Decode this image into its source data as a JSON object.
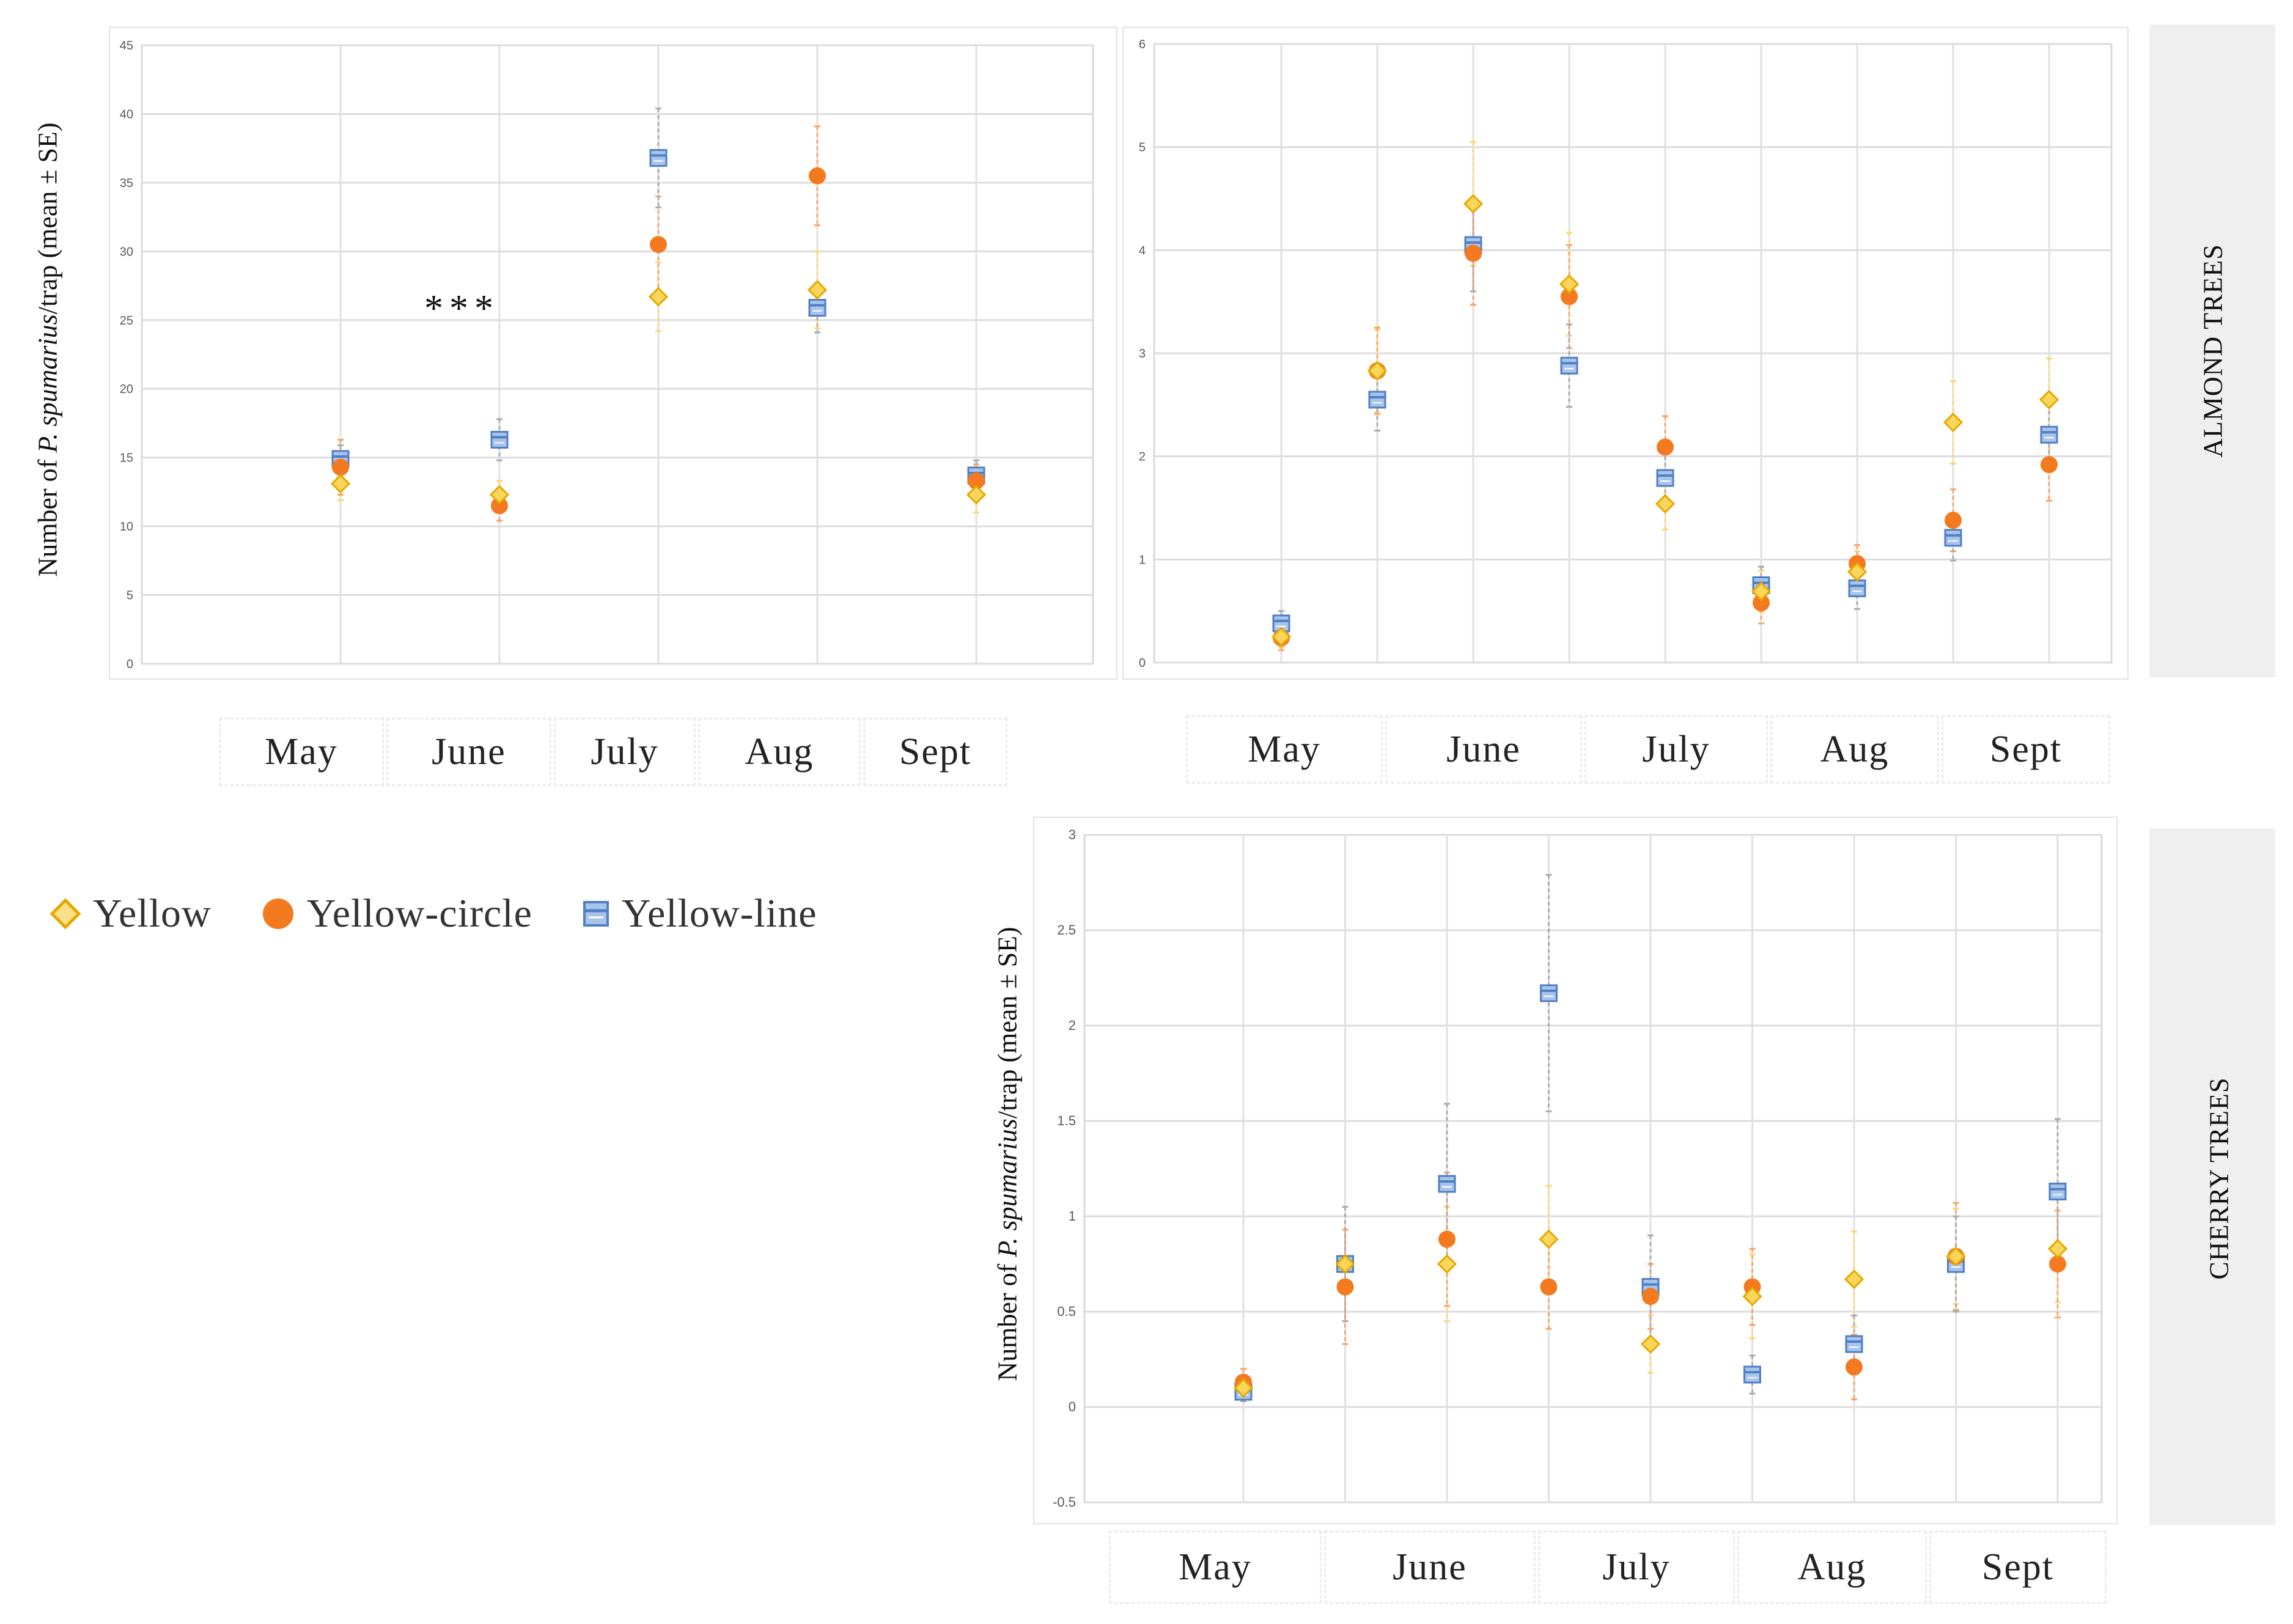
{
  "legend": {
    "items": [
      {
        "label": "Yellow",
        "marker": "diamond",
        "color": "#F7C62F"
      },
      {
        "label": "Yellow-circle",
        "marker": "circle",
        "color": "#F47A20"
      },
      {
        "label": "Yellow-line",
        "marker": "square",
        "color": "#5B8BD0"
      }
    ]
  },
  "side_labels": {
    "almond": "ALMOND TREES",
    "cherry": "CHERRY TREES"
  },
  "y_axis_label": {
    "prefix": "Number of ",
    "species": "P. spumarius",
    "suffix": "/trap (mean ± SE)"
  },
  "annotation": "***",
  "month_rows": {
    "panel1": [
      "May",
      "June",
      "July",
      "Aug",
      "Sept"
    ],
    "panel2": [
      "May",
      "June",
      "July",
      "Aug",
      "Sept"
    ],
    "panel3": [
      "May",
      "June",
      "July",
      "Aug",
      "Sept"
    ]
  },
  "chart_data": [
    {
      "id": "panel1",
      "type": "scatter",
      "title": "",
      "ylabel": "Number of P. spumarius/trap (mean ± SE)",
      "ylim": [
        0,
        45
      ],
      "yticks": [
        "0",
        "5",
        "10",
        "15",
        "20",
        "25",
        "30",
        "35",
        "40",
        "45"
      ],
      "x_count": 5,
      "series": [
        {
          "name": "Yellow",
          "values": [
            13.1,
            12.3,
            26.7,
            27.2,
            12.3
          ],
          "err": [
            1.2,
            1.0,
            2.5,
            2.8,
            1.3
          ]
        },
        {
          "name": "Yellow-circle",
          "values": [
            14.3,
            11.5,
            30.5,
            35.5,
            13.3
          ],
          "err": [
            2.0,
            1.1,
            3.5,
            3.6,
            1.2
          ]
        },
        {
          "name": "Yellow-line",
          "values": [
            14.9,
            16.3,
            36.8,
            25.9,
            13.7
          ],
          "err": [
            1.0,
            1.5,
            3.6,
            1.8,
            1.1
          ]
        }
      ]
    },
    {
      "id": "panel2",
      "type": "scatter",
      "title": "",
      "ylim": [
        0,
        6
      ],
      "yticks": [
        "0",
        "1",
        "2",
        "3",
        "4",
        "5",
        "6"
      ],
      "x_count": 9,
      "series": [
        {
          "name": "Yellow",
          "values": [
            0.25,
            2.83,
            4.45,
            3.67,
            1.54,
            0.69,
            0.88,
            2.33,
            2.55
          ],
          "err": [
            0.1,
            0.4,
            0.6,
            0.5,
            0.25,
            0.2,
            0.2,
            0.4,
            0.4
          ]
        },
        {
          "name": "Yellow-circle",
          "values": [
            0.24,
            2.83,
            3.97,
            3.55,
            2.09,
            0.58,
            0.96,
            1.38,
            1.92
          ],
          "err": [
            0.12,
            0.42,
            0.5,
            0.5,
            0.3,
            0.2,
            0.18,
            0.3,
            0.35
          ]
        },
        {
          "name": "Yellow-line",
          "values": [
            0.38,
            2.55,
            4.05,
            2.88,
            1.79,
            0.75,
            0.72,
            1.21,
            2.21
          ],
          "err": [
            0.12,
            0.3,
            0.45,
            0.4,
            0.28,
            0.18,
            0.2,
            0.22,
            0.3
          ]
        }
      ]
    },
    {
      "id": "panel3",
      "type": "scatter",
      "title": "",
      "ylabel": "Number of P. spumarius/trap (mean ± SE)",
      "ylim": [
        -0.5,
        3
      ],
      "yticks": [
        "-0.5",
        "0",
        "0.5",
        "1",
        "1.5",
        "2",
        "2.5",
        "3"
      ],
      "x_count": 9,
      "series": [
        {
          "name": "Yellow",
          "values": [
            0.1,
            0.75,
            0.75,
            0.88,
            0.33,
            0.58,
            0.67,
            0.79,
            0.83
          ],
          "err": [
            0.05,
            0.3,
            0.3,
            0.28,
            0.15,
            0.22,
            0.25,
            0.25,
            0.28
          ]
        },
        {
          "name": "Yellow-circle",
          "values": [
            0.13,
            0.63,
            0.88,
            0.63,
            0.58,
            0.63,
            0.21,
            0.79,
            0.75
          ],
          "err": [
            0.07,
            0.3,
            0.35,
            0.22,
            0.17,
            0.2,
            0.17,
            0.28,
            0.28
          ]
        },
        {
          "name": "Yellow-line",
          "values": [
            0.08,
            0.75,
            1.17,
            2.17,
            0.63,
            0.17,
            0.33,
            0.75,
            1.13
          ],
          "err": [
            0.05,
            0.3,
            0.42,
            0.62,
            0.27,
            0.1,
            0.15,
            0.25,
            0.38
          ]
        }
      ]
    }
  ]
}
